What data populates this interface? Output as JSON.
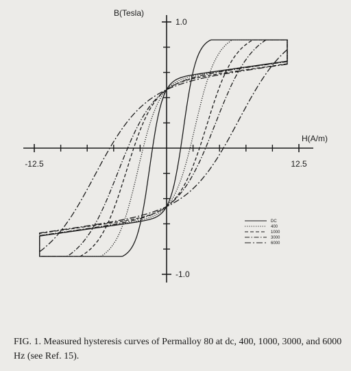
{
  "figure": {
    "caption": "FIG. 1. Measured hysteresis curves of Permalloy 80 at dc, 400, 1000, 3000, and 6000 Hz (see Ref. 15)."
  },
  "chart_data": {
    "type": "line",
    "title": "",
    "xlabel": "H(A/m)",
    "ylabel": "B(Tesla)",
    "xlim": [
      -12.5,
      12.5
    ],
    "ylim": [
      -1.0,
      1.0
    ],
    "x_tick_labels": [
      {
        "value": -12.5,
        "label": "-12.5"
      },
      {
        "value": 12.5,
        "label": "12.5"
      }
    ],
    "y_tick_labels": [
      {
        "value": 1.0,
        "label": "1.0"
      },
      {
        "value": -1.0,
        "label": "-1.0"
      }
    ],
    "x_minor_ticks": [
      -10,
      -7.5,
      -5,
      -2.5,
      2.5,
      5,
      7.5,
      10
    ],
    "y_minor_ticks": [
      0.8,
      0.6,
      0.4,
      0.2,
      -0.2,
      -0.4,
      -0.6,
      -0.8
    ],
    "grid": false,
    "legend_position": "bottom-right",
    "series": [
      {
        "name": "DC",
        "style": "solid",
        "coercive_field": 1.6,
        "knee_field": 1.2,
        "remanence": 0.6,
        "saturation_field": 11.4,
        "saturation_flux": 0.78
      },
      {
        "name": "400",
        "style": "dotted",
        "coercive_field": 2.7,
        "knee_field": 2.0,
        "remanence": 0.6,
        "saturation_field": 11.4,
        "saturation_flux": 0.78
      },
      {
        "name": "1000",
        "style": "dashed",
        "coercive_field": 3.8,
        "knee_field": 2.6,
        "remanence": 0.6,
        "saturation_field": 11.4,
        "saturation_flux": 0.78
      },
      {
        "name": "3000",
        "style": "dash-dot",
        "coercive_field": 4.6,
        "knee_field": 3.4,
        "remanence": 0.6,
        "saturation_field": 11.4,
        "saturation_flux": 0.78
      },
      {
        "name": "6000",
        "style": "long-dash",
        "coercive_field": 6.8,
        "knee_field": 4.6,
        "remanence": 0.6,
        "saturation_field": 11.4,
        "saturation_flux": 0.78
      }
    ]
  }
}
